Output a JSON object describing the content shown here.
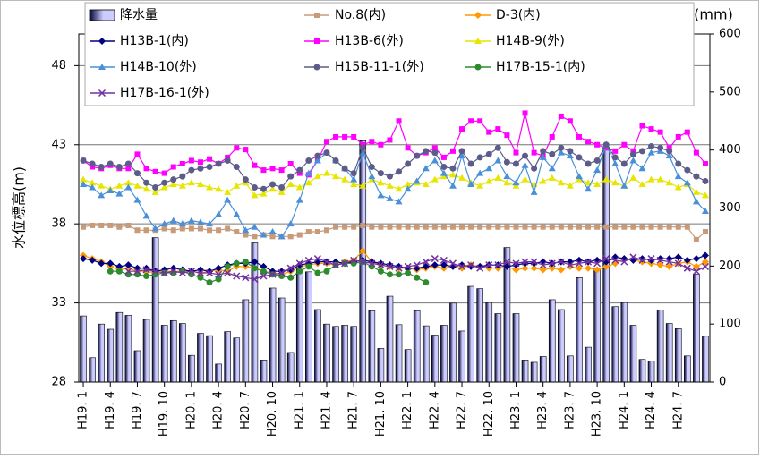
{
  "chart_data": {
    "type": "line",
    "y_label": "水位標高(m)",
    "y2_label": "降水量(mm)",
    "ylim": [
      28,
      50
    ],
    "yticks": [
      28,
      33,
      38,
      43,
      48
    ],
    "y2lim": [
      0,
      600
    ],
    "y2ticks": [
      0,
      100,
      200,
      300,
      400,
      500,
      600
    ],
    "grid": true,
    "legend": "top",
    "categories": [
      "H19. 1",
      null,
      null,
      "H19. 4",
      null,
      null,
      "H19. 7",
      null,
      null,
      "H19. 10",
      null,
      null,
      "H20. 1",
      null,
      null,
      "H20. 4",
      null,
      null,
      "H20. 7",
      null,
      null,
      "H20. 10",
      null,
      null,
      "H21. 1",
      null,
      null,
      "H21. 4",
      null,
      null,
      "H21. 7",
      null,
      null,
      "H21. 10",
      null,
      null,
      "H22. 1",
      null,
      null,
      "H22. 4",
      null,
      null,
      "H22. 7",
      null,
      null,
      "H22. 10",
      null,
      null,
      "H23. 1",
      null,
      null,
      "H23. 4",
      null,
      null,
      "H23. 7",
      null,
      null,
      "H23. 10",
      null,
      null,
      "H24. 1",
      null,
      null,
      "H24. 4",
      null,
      null,
      "H24. 7",
      null,
      null,
      null
    ],
    "series": [
      {
        "name": "降水量",
        "type": "bar",
        "axis": "y2",
        "color": "#ccccff",
        "edge": "#000033",
        "values": [
          114,
          42,
          100,
          91,
          120,
          115,
          54,
          108,
          249,
          98,
          106,
          101,
          46,
          84,
          80,
          31,
          87,
          76,
          142,
          240,
          38,
          162,
          145,
          51,
          202,
          190,
          125,
          100,
          96,
          98,
          96,
          416,
          123,
          58,
          148,
          99,
          56,
          123,
          97,
          81,
          98,
          136,
          88,
          165,
          161,
          137,
          118,
          232,
          118,
          38,
          34,
          44,
          142,
          125,
          45,
          180,
          60,
          196,
          405,
          130,
          137,
          98,
          39,
          36,
          124,
          101,
          92,
          45,
          186,
          79
        ]
      },
      {
        "name": "No.8(内)",
        "color": "#c89a78",
        "marker": "square",
        "values": [
          37.8,
          37.9,
          37.9,
          37.9,
          37.8,
          37.9,
          37.6,
          37.6,
          37.6,
          37.7,
          37.6,
          37.7,
          37.7,
          37.7,
          37.6,
          37.6,
          37.7,
          37.5,
          37.3,
          37.2,
          37.3,
          37.2,
          37.2,
          37.2,
          37.3,
          37.5,
          37.5,
          37.6,
          37.8,
          37.8,
          37.8,
          37.9,
          37.8,
          37.8,
          37.8,
          37.8,
          37.8,
          37.8,
          37.8,
          37.8,
          37.8,
          37.8,
          37.8,
          37.8,
          37.8,
          37.8,
          37.8,
          37.8,
          37.8,
          37.8,
          37.8,
          37.8,
          37.8,
          37.8,
          37.8,
          37.8,
          37.8,
          37.8,
          37.8,
          37.8,
          37.8,
          37.8,
          37.8,
          37.8,
          37.8,
          37.8,
          37.8,
          37.8,
          37.0,
          37.5
        ]
      },
      {
        "name": "D-3(内)",
        "color": "#ff9900",
        "marker": "diamond",
        "values": [
          36.0,
          35.8,
          35.6,
          35.3,
          35.1,
          35.2,
          35.0,
          35.0,
          34.9,
          35.0,
          35.0,
          35.0,
          35.0,
          34.9,
          35.0,
          35.1,
          35.0,
          35.3,
          35.3,
          35.2,
          35.0,
          34.9,
          34.8,
          35.0,
          35.3,
          35.4,
          35.5,
          35.5,
          35.4,
          35.6,
          35.7,
          36.3,
          35.6,
          35.4,
          35.3,
          35.2,
          35.2,
          35.1,
          35.2,
          35.3,
          35.2,
          35.3,
          35.2,
          35.4,
          35.3,
          35.2,
          35.2,
          35.3,
          35.1,
          35.2,
          35.2,
          35.1,
          35.2,
          35.1,
          35.3,
          35.2,
          35.2,
          35.1,
          35.3,
          35.5,
          35.8,
          35.7,
          35.6,
          35.5,
          35.4,
          35.3,
          35.5,
          35.6,
          35.3,
          35.6
        ]
      },
      {
        "name": "H13B-1(内)",
        "color": "#000080",
        "marker": "diamond",
        "values": [
          35.8,
          35.7,
          35.5,
          35.5,
          35.3,
          35.4,
          35.2,
          35.2,
          35.0,
          35.1,
          35.2,
          35.1,
          35.0,
          35.1,
          35.0,
          35.2,
          35.4,
          35.5,
          35.5,
          35.6,
          35.3,
          35.0,
          35.0,
          35.1,
          35.4,
          35.5,
          35.6,
          35.6,
          35.6,
          35.5,
          35.6,
          35.7,
          35.6,
          35.5,
          35.4,
          35.3,
          35.2,
          35.2,
          35.3,
          35.4,
          35.4,
          35.3,
          35.4,
          35.3,
          35.3,
          35.4,
          35.4,
          35.3,
          35.4,
          35.5,
          35.5,
          35.6,
          35.5,
          35.6,
          35.6,
          35.7,
          35.6,
          35.7,
          35.6,
          35.9,
          35.8,
          35.7,
          35.8,
          35.7,
          35.8,
          35.8,
          35.9,
          35.7,
          35.8,
          36.0
        ]
      },
      {
        "name": "H13B-6(外)",
        "color": "#ff00ff",
        "marker": "square",
        "values": [
          42.0,
          41.6,
          41.5,
          41.7,
          41.5,
          41.5,
          42.4,
          41.5,
          41.3,
          41.2,
          41.6,
          41.8,
          42.0,
          41.9,
          42.1,
          41.8,
          42.2,
          42.8,
          42.7,
          41.7,
          41.4,
          41.5,
          41.4,
          41.8,
          41.2,
          41.1,
          42.0,
          43.2,
          43.5,
          43.5,
          43.5,
          43.0,
          43.2,
          43.0,
          43.3,
          44.5,
          42.8,
          42.3,
          42.5,
          42.8,
          42.2,
          42.6,
          44.0,
          44.5,
          44.5,
          43.8,
          44.0,
          43.6,
          42.5,
          45.0,
          42.5,
          42.3,
          43.5,
          44.8,
          44.5,
          43.5,
          43.2,
          43.0,
          42.8,
          42.6,
          43.0,
          42.6,
          44.2,
          44.0,
          43.8,
          42.8,
          43.5,
          43.8,
          42.5,
          41.8
        ]
      },
      {
        "name": "H14B-9(外)",
        "color": "#e6e600",
        "marker": "triangle",
        "values": [
          40.8,
          40.6,
          40.4,
          40.2,
          40.4,
          40.6,
          40.4,
          40.2,
          40.0,
          40.3,
          40.5,
          40.4,
          40.6,
          40.5,
          40.3,
          40.2,
          40.0,
          40.4,
          40.6,
          39.8,
          39.9,
          40.2,
          40.0,
          40.5,
          40.3,
          40.6,
          41.0,
          41.2,
          41.0,
          40.8,
          40.5,
          40.4,
          40.8,
          40.6,
          40.4,
          40.2,
          40.5,
          40.6,
          40.5,
          40.8,
          41.0,
          41.1,
          40.9,
          40.6,
          40.4,
          40.7,
          40.9,
          40.6,
          40.4,
          40.8,
          40.5,
          40.7,
          40.9,
          40.6,
          40.4,
          40.8,
          40.6,
          40.5,
          40.8,
          40.6,
          40.4,
          40.9,
          40.5,
          40.8,
          40.8,
          40.6,
          40.3,
          40.5,
          40.0,
          39.8
        ]
      },
      {
        "name": "H14B-10(外)",
        "color": "#4a90d9",
        "marker": "triangle",
        "values": [
          40.5,
          40.3,
          39.8,
          40.1,
          39.9,
          40.3,
          39.5,
          38.5,
          37.7,
          38.0,
          38.2,
          38.0,
          38.2,
          38.1,
          38.0,
          38.6,
          39.5,
          38.6,
          37.6,
          37.8,
          37.3,
          37.5,
          37.2,
          38.0,
          39.5,
          41.2,
          42.0,
          42.5,
          42.0,
          41.5,
          40.8,
          42.5,
          41.0,
          39.8,
          39.6,
          39.4,
          40.2,
          40.7,
          41.5,
          42.0,
          41.2,
          40.4,
          42.3,
          40.5,
          41.2,
          41.5,
          42.0,
          41.0,
          40.6,
          41.7,
          40.0,
          42.2,
          41.5,
          42.5,
          42.3,
          41.0,
          40.2,
          41.4,
          43.0,
          41.8,
          40.4,
          42.0,
          41.5,
          42.5,
          42.6,
          42.3,
          41.0,
          40.6,
          39.4,
          38.8
        ]
      },
      {
        "name": "H15B-11-1(外)",
        "color": "#5c5c8a",
        "marker": "circle",
        "values": [
          42.0,
          41.8,
          41.6,
          41.8,
          41.6,
          41.8,
          41.2,
          40.6,
          40.3,
          40.6,
          40.8,
          41.0,
          41.4,
          41.5,
          41.6,
          41.8,
          42.0,
          41.6,
          40.8,
          40.3,
          40.2,
          40.5,
          40.3,
          41.0,
          41.4,
          42.0,
          42.3,
          42.5,
          42.0,
          41.5,
          41.2,
          42.8,
          41.6,
          41.2,
          41.0,
          41.3,
          41.8,
          42.3,
          42.6,
          42.5,
          41.6,
          41.5,
          42.6,
          41.8,
          42.2,
          42.4,
          42.8,
          41.9,
          41.8,
          42.3,
          41.5,
          42.6,
          42.4,
          42.8,
          42.6,
          42.2,
          41.8,
          42.0,
          43.0,
          42.2,
          41.8,
          42.4,
          42.6,
          42.9,
          42.8,
          42.6,
          41.8,
          41.4,
          41.0,
          40.7
        ]
      },
      {
        "name": "H17B-15-1(内)",
        "color": "#2e8b2e",
        "marker": "circle",
        "values": [
          null,
          null,
          null,
          35.0,
          35.0,
          34.8,
          34.8,
          34.7,
          34.8,
          34.9,
          34.9,
          35.0,
          34.8,
          34.6,
          34.3,
          34.5,
          35.3,
          35.5,
          35.6,
          35.2,
          35.0,
          34.8,
          34.7,
          34.6,
          35.0,
          35.3,
          34.9,
          35.0,
          35.4,
          35.5,
          35.5,
          35.6,
          35.3,
          35.0,
          34.8,
          34.8,
          34.9,
          34.6,
          34.3,
          null,
          null,
          null,
          null,
          null,
          null,
          null,
          null,
          null,
          null,
          null,
          null,
          null,
          null,
          null,
          null,
          null,
          null,
          null,
          null,
          null,
          null,
          null,
          null,
          null,
          null,
          null,
          null,
          null,
          null,
          null
        ]
      },
      {
        "name": "H17B-16-1(外)",
        "color": "#7030a0",
        "marker": "x",
        "values": [
          null,
          null,
          null,
          null,
          null,
          35.0,
          35.0,
          35.1,
          35.0,
          34.9,
          35.0,
          34.9,
          35.0,
          34.9,
          34.9,
          34.8,
          34.9,
          34.7,
          34.6,
          34.5,
          34.7,
          34.8,
          34.9,
          35.2,
          35.5,
          35.7,
          35.8,
          35.6,
          35.4,
          35.5,
          35.7,
          35.6,
          35.5,
          35.4,
          35.3,
          35.2,
          35.3,
          35.4,
          35.6,
          35.8,
          35.7,
          35.5,
          35.3,
          35.4,
          35.2,
          35.4,
          35.4,
          35.6,
          35.5,
          35.6,
          35.6,
          35.4,
          35.5,
          35.6,
          35.4,
          35.5,
          35.6,
          35.5,
          35.8,
          35.7,
          35.6,
          35.9,
          35.7,
          35.8,
          35.7,
          35.6,
          35.5,
          35.2,
          35.0,
          35.3
        ]
      }
    ]
  }
}
